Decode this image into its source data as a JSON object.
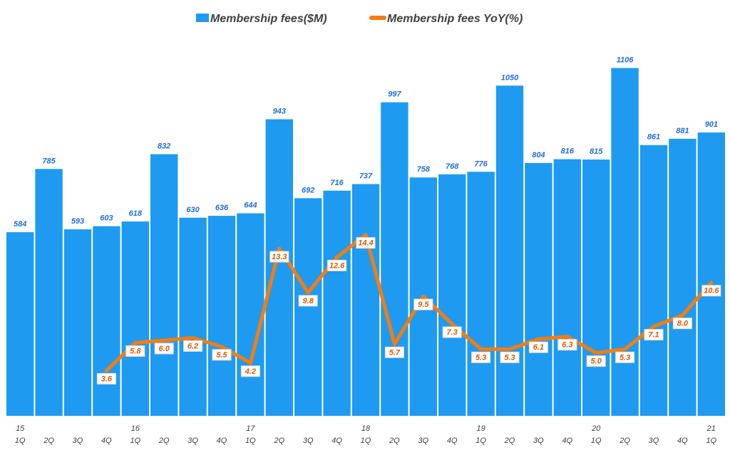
{
  "chart_data": {
    "type": "bar+line",
    "title": "",
    "legend": {
      "placement": "top",
      "entries": [
        "Membership fees($M)",
        "Membership fees YoY(%)"
      ]
    },
    "categories": [
      {
        "year": "15",
        "q": "1Q"
      },
      {
        "year": "",
        "q": "2Q"
      },
      {
        "year": "",
        "q": "3Q"
      },
      {
        "year": "",
        "q": "4Q"
      },
      {
        "year": "16",
        "q": "1Q"
      },
      {
        "year": "",
        "q": "2Q"
      },
      {
        "year": "",
        "q": "3Q"
      },
      {
        "year": "",
        "q": "4Q"
      },
      {
        "year": "17",
        "q": "1Q"
      },
      {
        "year": "",
        "q": "2Q"
      },
      {
        "year": "",
        "q": "3Q"
      },
      {
        "year": "",
        "q": "4Q"
      },
      {
        "year": "18",
        "q": "1Q"
      },
      {
        "year": "",
        "q": "2Q"
      },
      {
        "year": "",
        "q": "3Q"
      },
      {
        "year": "",
        "q": "4Q"
      },
      {
        "year": "19",
        "q": "1Q"
      },
      {
        "year": "",
        "q": "2Q"
      },
      {
        "year": "",
        "q": "3Q"
      },
      {
        "year": "",
        "q": "4Q"
      },
      {
        "year": "20",
        "q": "1Q"
      },
      {
        "year": "",
        "q": "2Q"
      },
      {
        "year": "",
        "q": "3Q"
      },
      {
        "year": "",
        "q": "4Q"
      },
      {
        "year": "21",
        "q": "1Q"
      }
    ],
    "series": [
      {
        "name": "Membership fees($M)",
        "type": "bar",
        "axis": "primary",
        "color": "#1e9bf0",
        "values": [
          584,
          785,
          593,
          603,
          618,
          832,
          630,
          636,
          644,
          943,
          692,
          716,
          737,
          997,
          758,
          768,
          776,
          1050,
          804,
          816,
          815,
          1106,
          861,
          881,
          901
        ]
      },
      {
        "name": "Membership fees YoY(%)",
        "type": "line",
        "axis": "secondary",
        "color": "#f57c10",
        "values": [
          null,
          null,
          null,
          3.6,
          5.8,
          6.0,
          6.2,
          5.5,
          4.2,
          13.3,
          9.8,
          12.6,
          14.4,
          5.7,
          9.5,
          7.3,
          5.3,
          5.3,
          6.1,
          6.3,
          5.0,
          5.3,
          7.1,
          8.0,
          10.6
        ]
      }
    ],
    "ylim": [
      0,
      1200
    ],
    "y2lim": [
      0,
      30
    ],
    "grid": false
  }
}
